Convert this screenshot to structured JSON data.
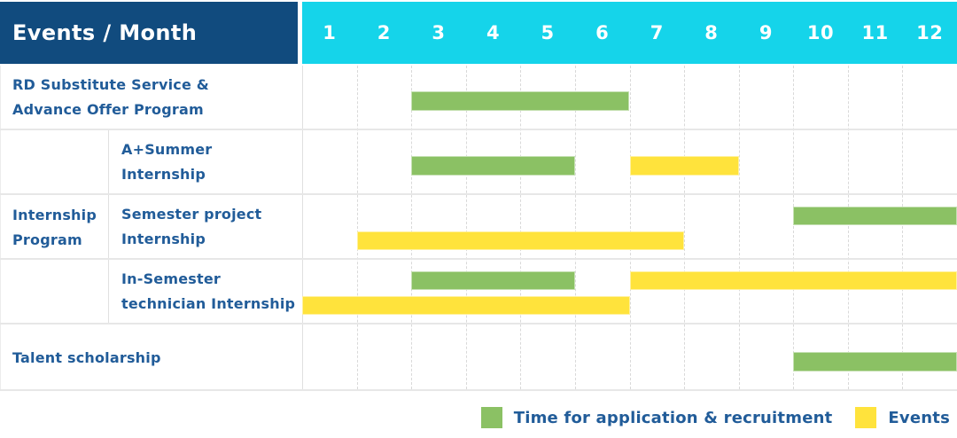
{
  "header": {
    "label": "Events / Month",
    "months": [
      "1",
      "2",
      "3",
      "4",
      "5",
      "6",
      "7",
      "8",
      "9",
      "10",
      "11",
      "12"
    ]
  },
  "colors": {
    "navy": "#114B7E",
    "cyan": "#15D4EA",
    "green": "#8BC164",
    "yellow": "#FFE33C",
    "text": "#215C99"
  },
  "chart_data": {
    "type": "gantt",
    "x_label": "Month",
    "x_categories": [
      "1",
      "2",
      "3",
      "4",
      "5",
      "6",
      "7",
      "8",
      "9",
      "10",
      "11",
      "12"
    ],
    "x_range": [
      1,
      12
    ],
    "legend": [
      {
        "type": "recruitment",
        "label": "Time for application & recruitment",
        "color": "#8BC164"
      },
      {
        "type": "event",
        "label": "Events",
        "color": "#FFE33C"
      }
    ],
    "group_label_lines": [
      "Internship",
      "Program"
    ],
    "rows": [
      {
        "name": "rd-substitute-service-advance-offer-program",
        "label_lines": [
          "RD Substitute Service &",
          "Advance Offer Program"
        ],
        "bars": [
          {
            "type": "recruitment",
            "start_month": 3,
            "end_month": 6,
            "line": 1
          }
        ]
      },
      {
        "name": "a-plus-summer-internship",
        "group": "Internship Program",
        "label_lines": [
          "A+Summer",
          "Internship"
        ],
        "bars": [
          {
            "type": "recruitment",
            "start_month": 3,
            "end_month": 5,
            "line": 1
          },
          {
            "type": "event",
            "start_month": 7,
            "end_month": 8,
            "line": 1
          }
        ]
      },
      {
        "name": "semester-project-internship",
        "group": "Internship Program",
        "label_lines": [
          "Semester project",
          "Internship"
        ],
        "bars": [
          {
            "type": "recruitment",
            "start_month": 10,
            "end_month": 12,
            "line": 1
          },
          {
            "type": "event",
            "start_month": 2,
            "end_month": 7,
            "line": 2
          }
        ]
      },
      {
        "name": "in-semester-technician-internship",
        "group": "Internship Program",
        "label_lines": [
          "In-Semester",
          "technician Internship"
        ],
        "bars": [
          {
            "type": "recruitment",
            "start_month": 3,
            "end_month": 5,
            "line": 1
          },
          {
            "type": "event",
            "start_month": 7,
            "end_month": 12,
            "line": 1
          },
          {
            "type": "event",
            "start_month": 1,
            "end_month": 6,
            "line": 2
          }
        ]
      },
      {
        "name": "talent-scholarship",
        "label_lines": [
          "Talent scholarship"
        ],
        "bars": [
          {
            "type": "recruitment",
            "start_month": 10,
            "end_month": 12,
            "line": 1
          }
        ]
      }
    ]
  }
}
